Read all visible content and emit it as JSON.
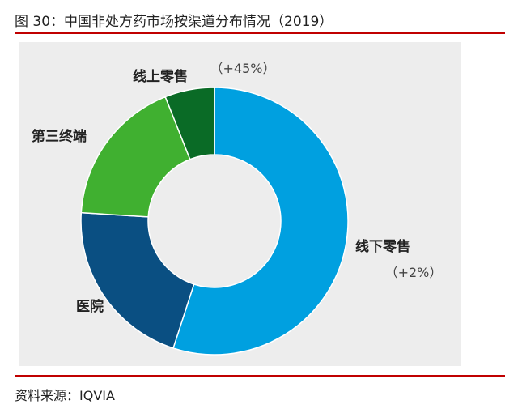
{
  "figure": {
    "title": "图 30：中国非处方药市场按渠道分布情况（2019）",
    "source": "资料来源：IQVIA"
  },
  "colors": {
    "rule": "#c00000",
    "panel": "#ededed"
  },
  "chart_data": {
    "type": "pie",
    "style": "donut",
    "title": "",
    "legend": "none",
    "categories": [
      "线下零售",
      "医院",
      "第三终端",
      "线上零售"
    ],
    "values": [
      55,
      21,
      18,
      6
    ],
    "annotations": [
      "（+2%）",
      "",
      "",
      "（+45%）"
    ],
    "colors": [
      "#00a0e0",
      "#0a4f82",
      "#40b030",
      "#0a6b26"
    ]
  }
}
